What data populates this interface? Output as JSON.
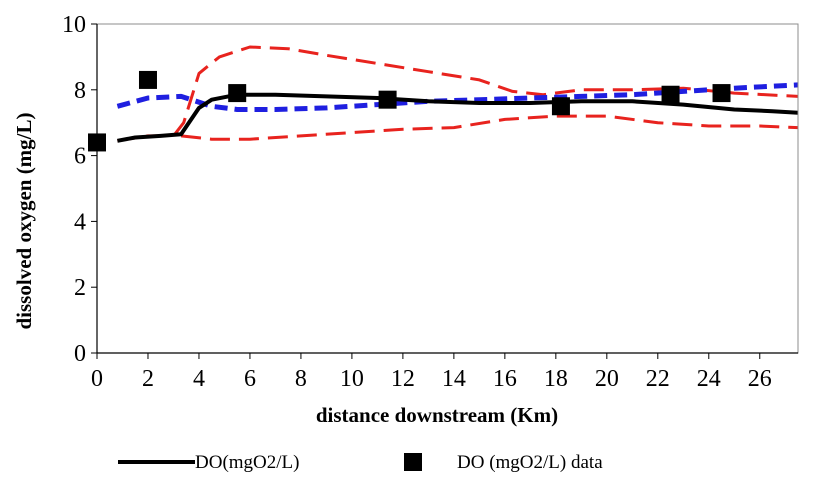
{
  "chart_data": {
    "type": "line",
    "title": "",
    "xlabel": "distance downstream (Km)",
    "ylabel": "dissolved oxygen (mg/L)",
    "xlim": [
      0,
      27.5
    ],
    "ylim": [
      0,
      10
    ],
    "xticks": [
      0,
      2,
      4,
      6,
      8,
      10,
      12,
      14,
      16,
      18,
      20,
      22,
      24,
      26
    ],
    "yticks": [
      0,
      2,
      4,
      6,
      8,
      10
    ],
    "grid": false,
    "legend_position": "bottom",
    "series": [
      {
        "name": "DO(mgO2/L)",
        "kind": "line",
        "style": "solid",
        "color": "#000000",
        "x": [
          0.8,
          1.5,
          2.5,
          3.3,
          4.0,
          4.5,
          5.5,
          7.0,
          9.0,
          11.0,
          13.0,
          15.0,
          17.0,
          19.0,
          21.0,
          23.0,
          25.0,
          26.5,
          27.5
        ],
        "y": [
          6.45,
          6.55,
          6.6,
          6.65,
          7.45,
          7.7,
          7.85,
          7.85,
          7.8,
          7.75,
          7.65,
          7.6,
          7.6,
          7.65,
          7.65,
          7.55,
          7.4,
          7.35,
          7.3
        ]
      },
      {
        "name": "DO (mgO2/L) data",
        "kind": "scatter",
        "marker": "square",
        "color": "#000000",
        "x": [
          0,
          2,
          5.5,
          11.4,
          18.2,
          22.5,
          24.5
        ],
        "y": [
          6.4,
          8.3,
          7.9,
          7.7,
          7.5,
          7.85,
          7.9
        ]
      },
      {
        "kind": "line",
        "style": "dashed",
        "color": "#1f1fe0",
        "x": [
          0.8,
          2.0,
          3.3,
          4.5,
          5.5,
          7.0,
          9.0,
          11.0,
          13.0,
          15.0,
          17.0,
          19.0,
          21.0,
          23.0,
          25.0,
          27.5
        ],
        "y": [
          7.5,
          7.75,
          7.8,
          7.5,
          7.4,
          7.4,
          7.45,
          7.55,
          7.65,
          7.7,
          7.75,
          7.8,
          7.85,
          7.95,
          8.05,
          8.15
        ]
      },
      {
        "kind": "line",
        "style": "dashed",
        "color": "#e8231e",
        "x": [
          0.8,
          2.0,
          3.0,
          3.4,
          4.0,
          4.8,
          6.0,
          7.5,
          9.0,
          11.0,
          13.0,
          15.0,
          16.3,
          17.5,
          19.0,
          21.0,
          23.0,
          25.0,
          27.5
        ],
        "y": [
          6.45,
          6.6,
          6.6,
          7.0,
          8.5,
          9.0,
          9.3,
          9.25,
          9.05,
          8.8,
          8.55,
          8.3,
          7.95,
          7.85,
          8.0,
          8.0,
          8.05,
          7.9,
          7.8
        ]
      },
      {
        "kind": "line",
        "style": "dashed",
        "color": "#e8231e",
        "x": [
          3.3,
          4.5,
          6.0,
          8.0,
          10.0,
          12.0,
          14.0,
          16.0,
          18.0,
          20.0,
          22.0,
          24.0,
          26.0,
          27.5
        ],
        "y": [
          6.6,
          6.5,
          6.5,
          6.6,
          6.7,
          6.8,
          6.85,
          7.1,
          7.2,
          7.2,
          7.0,
          6.9,
          6.9,
          6.85
        ]
      }
    ]
  }
}
